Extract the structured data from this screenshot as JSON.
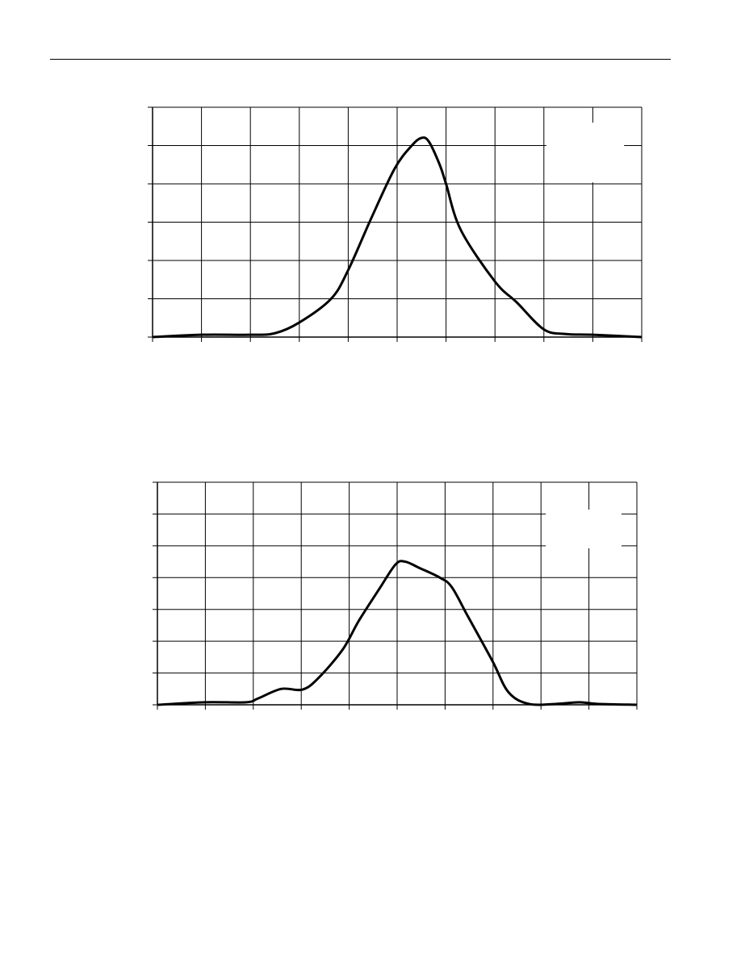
{
  "chart_data": [
    {
      "type": "line",
      "x": [
        0,
        1,
        2,
        2.5,
        3,
        3.65,
        4,
        4.47,
        4.95,
        5.3,
        5.5,
        5.65,
        5.87,
        6,
        6.3,
        7,
        7.45,
        8,
        8.45,
        9,
        10
      ],
      "series": [
        {
          "color": "#000000",
          "values": [
            0,
            0.06,
            0.06,
            0.1,
            0.38,
            1.0,
            1.75,
            3.1,
            4.4,
            5.0,
            5.2,
            5.1,
            4.5,
            4.0,
            2.8,
            1.45,
            0.9,
            0.2,
            0.08,
            0.06,
            0
          ]
        }
      ],
      "xlim": [
        0,
        10
      ],
      "ylim": [
        0,
        6
      ],
      "xticks": [
        0,
        1,
        2,
        3,
        4,
        5,
        6,
        7,
        8,
        9,
        10
      ],
      "yticks": [
        0,
        1,
        2,
        3,
        4,
        5,
        6
      ],
      "grid": true
    },
    {
      "type": "line",
      "x": [
        0,
        1,
        1.85,
        2.1,
        2.58,
        3.03,
        3.37,
        3.87,
        4.2,
        4.63,
        4.97,
        5.17,
        5.47,
        5.89,
        6.14,
        6.48,
        6.99,
        7.32,
        7.74,
        8.33,
        8.8,
        9.17,
        10
      ],
      "series": [
        {
          "color": "#000000",
          "values": [
            0,
            0.08,
            0.08,
            0.2,
            0.5,
            0.48,
            0.86,
            1.75,
            2.64,
            3.65,
            4.42,
            4.5,
            4.3,
            4.0,
            3.7,
            2.77,
            1.37,
            0.4,
            0.03,
            0.03,
            0.08,
            0.03,
            0
          ]
        }
      ],
      "xlim": [
        0,
        10
      ],
      "ylim": [
        0,
        7
      ],
      "xticks": [
        0,
        1,
        2,
        3,
        4,
        5,
        6,
        7,
        8,
        9,
        10
      ],
      "yticks": [
        0,
        1,
        2,
        3,
        4,
        5,
        6,
        7
      ],
      "grid": true
    }
  ]
}
